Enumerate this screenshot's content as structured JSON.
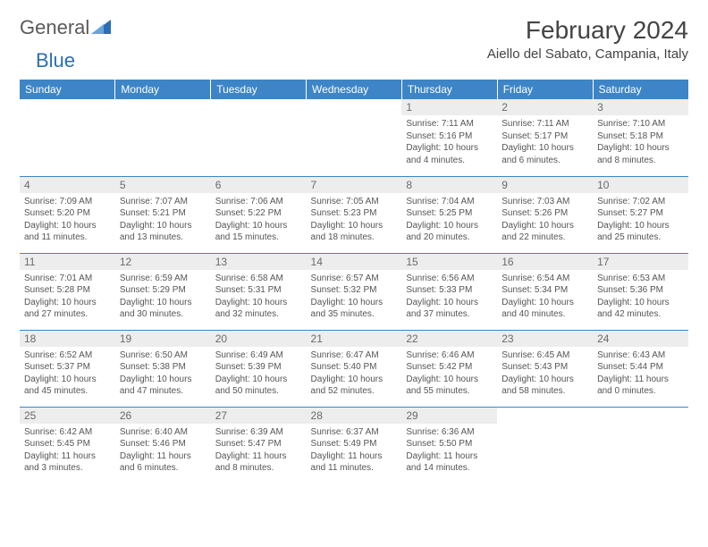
{
  "brand": {
    "name1": "General",
    "name2": "Blue"
  },
  "title": "February 2024",
  "location": "Aiello del Sabato, Campania, Italy",
  "colors": {
    "header_bg": "#3d85c6",
    "header_fg": "#ffffff",
    "daynum_bg": "#ededed",
    "rule": "#3d85c6"
  },
  "weekdays": [
    "Sunday",
    "Monday",
    "Tuesday",
    "Wednesday",
    "Thursday",
    "Friday",
    "Saturday"
  ],
  "weeks": [
    [
      null,
      null,
      null,
      null,
      {
        "n": "1",
        "sr": "Sunrise: 7:11 AM",
        "ss": "Sunset: 5:16 PM",
        "dl": "Daylight: 10 hours and 4 minutes."
      },
      {
        "n": "2",
        "sr": "Sunrise: 7:11 AM",
        "ss": "Sunset: 5:17 PM",
        "dl": "Daylight: 10 hours and 6 minutes."
      },
      {
        "n": "3",
        "sr": "Sunrise: 7:10 AM",
        "ss": "Sunset: 5:18 PM",
        "dl": "Daylight: 10 hours and 8 minutes."
      }
    ],
    [
      {
        "n": "4",
        "sr": "Sunrise: 7:09 AM",
        "ss": "Sunset: 5:20 PM",
        "dl": "Daylight: 10 hours and 11 minutes."
      },
      {
        "n": "5",
        "sr": "Sunrise: 7:07 AM",
        "ss": "Sunset: 5:21 PM",
        "dl": "Daylight: 10 hours and 13 minutes."
      },
      {
        "n": "6",
        "sr": "Sunrise: 7:06 AM",
        "ss": "Sunset: 5:22 PM",
        "dl": "Daylight: 10 hours and 15 minutes."
      },
      {
        "n": "7",
        "sr": "Sunrise: 7:05 AM",
        "ss": "Sunset: 5:23 PM",
        "dl": "Daylight: 10 hours and 18 minutes."
      },
      {
        "n": "8",
        "sr": "Sunrise: 7:04 AM",
        "ss": "Sunset: 5:25 PM",
        "dl": "Daylight: 10 hours and 20 minutes."
      },
      {
        "n": "9",
        "sr": "Sunrise: 7:03 AM",
        "ss": "Sunset: 5:26 PM",
        "dl": "Daylight: 10 hours and 22 minutes."
      },
      {
        "n": "10",
        "sr": "Sunrise: 7:02 AM",
        "ss": "Sunset: 5:27 PM",
        "dl": "Daylight: 10 hours and 25 minutes."
      }
    ],
    [
      {
        "n": "11",
        "sr": "Sunrise: 7:01 AM",
        "ss": "Sunset: 5:28 PM",
        "dl": "Daylight: 10 hours and 27 minutes."
      },
      {
        "n": "12",
        "sr": "Sunrise: 6:59 AM",
        "ss": "Sunset: 5:29 PM",
        "dl": "Daylight: 10 hours and 30 minutes."
      },
      {
        "n": "13",
        "sr": "Sunrise: 6:58 AM",
        "ss": "Sunset: 5:31 PM",
        "dl": "Daylight: 10 hours and 32 minutes."
      },
      {
        "n": "14",
        "sr": "Sunrise: 6:57 AM",
        "ss": "Sunset: 5:32 PM",
        "dl": "Daylight: 10 hours and 35 minutes."
      },
      {
        "n": "15",
        "sr": "Sunrise: 6:56 AM",
        "ss": "Sunset: 5:33 PM",
        "dl": "Daylight: 10 hours and 37 minutes."
      },
      {
        "n": "16",
        "sr": "Sunrise: 6:54 AM",
        "ss": "Sunset: 5:34 PM",
        "dl": "Daylight: 10 hours and 40 minutes."
      },
      {
        "n": "17",
        "sr": "Sunrise: 6:53 AM",
        "ss": "Sunset: 5:36 PM",
        "dl": "Daylight: 10 hours and 42 minutes."
      }
    ],
    [
      {
        "n": "18",
        "sr": "Sunrise: 6:52 AM",
        "ss": "Sunset: 5:37 PM",
        "dl": "Daylight: 10 hours and 45 minutes."
      },
      {
        "n": "19",
        "sr": "Sunrise: 6:50 AM",
        "ss": "Sunset: 5:38 PM",
        "dl": "Daylight: 10 hours and 47 minutes."
      },
      {
        "n": "20",
        "sr": "Sunrise: 6:49 AM",
        "ss": "Sunset: 5:39 PM",
        "dl": "Daylight: 10 hours and 50 minutes."
      },
      {
        "n": "21",
        "sr": "Sunrise: 6:47 AM",
        "ss": "Sunset: 5:40 PM",
        "dl": "Daylight: 10 hours and 52 minutes."
      },
      {
        "n": "22",
        "sr": "Sunrise: 6:46 AM",
        "ss": "Sunset: 5:42 PM",
        "dl": "Daylight: 10 hours and 55 minutes."
      },
      {
        "n": "23",
        "sr": "Sunrise: 6:45 AM",
        "ss": "Sunset: 5:43 PM",
        "dl": "Daylight: 10 hours and 58 minutes."
      },
      {
        "n": "24",
        "sr": "Sunrise: 6:43 AM",
        "ss": "Sunset: 5:44 PM",
        "dl": "Daylight: 11 hours and 0 minutes."
      }
    ],
    [
      {
        "n": "25",
        "sr": "Sunrise: 6:42 AM",
        "ss": "Sunset: 5:45 PM",
        "dl": "Daylight: 11 hours and 3 minutes."
      },
      {
        "n": "26",
        "sr": "Sunrise: 6:40 AM",
        "ss": "Sunset: 5:46 PM",
        "dl": "Daylight: 11 hours and 6 minutes."
      },
      {
        "n": "27",
        "sr": "Sunrise: 6:39 AM",
        "ss": "Sunset: 5:47 PM",
        "dl": "Daylight: 11 hours and 8 minutes."
      },
      {
        "n": "28",
        "sr": "Sunrise: 6:37 AM",
        "ss": "Sunset: 5:49 PM",
        "dl": "Daylight: 11 hours and 11 minutes."
      },
      {
        "n": "29",
        "sr": "Sunrise: 6:36 AM",
        "ss": "Sunset: 5:50 PM",
        "dl": "Daylight: 11 hours and 14 minutes."
      },
      null,
      null
    ]
  ]
}
